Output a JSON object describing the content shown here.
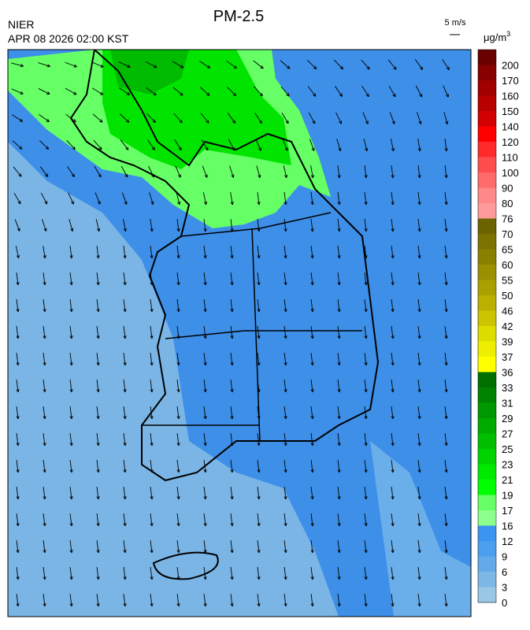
{
  "title": "PM-2.5",
  "agency": "NIER",
  "timestamp": "APR 08 2026 02:00 KST",
  "wind_scale": "5 m/s",
  "unit": {
    "base": "μg/m",
    "sup": "3"
  },
  "legend": [
    {
      "value": 200,
      "color": "#6a0000"
    },
    {
      "value": 170,
      "color": "#880000"
    },
    {
      "value": 160,
      "color": "#a00000"
    },
    {
      "value": 150,
      "color": "#b80000"
    },
    {
      "value": 140,
      "color": "#d20000"
    },
    {
      "value": 120,
      "color": "#ff0000"
    },
    {
      "value": 110,
      "color": "#ff2a2a"
    },
    {
      "value": 100,
      "color": "#ff4d4d"
    },
    {
      "value": 90,
      "color": "#ff6b6b"
    },
    {
      "value": 80,
      "color": "#ff8888"
    },
    {
      "value": 76,
      "color": "#ff9a9a"
    },
    {
      "value": 70,
      "color": "#6b6300"
    },
    {
      "value": 65,
      "color": "#7b7200"
    },
    {
      "value": 60,
      "color": "#8a8000"
    },
    {
      "value": 55,
      "color": "#9a9000"
    },
    {
      "value": 50,
      "color": "#aaa000"
    },
    {
      "value": 46,
      "color": "#bbb000"
    },
    {
      "value": 42,
      "color": "#ccc400"
    },
    {
      "value": 39,
      "color": "#dddd00"
    },
    {
      "value": 37,
      "color": "#eeee00"
    },
    {
      "value": 36,
      "color": "#ffff00"
    },
    {
      "value": 33,
      "color": "#007000"
    },
    {
      "value": 31,
      "color": "#008400"
    },
    {
      "value": 29,
      "color": "#009800"
    },
    {
      "value": 27,
      "color": "#00ab00"
    },
    {
      "value": 25,
      "color": "#00bf00"
    },
    {
      "value": 23,
      "color": "#00d400"
    },
    {
      "value": 21,
      "color": "#00ea00"
    },
    {
      "value": 19,
      "color": "#00ff00"
    },
    {
      "value": 17,
      "color": "#66ff66"
    },
    {
      "value": 16,
      "color": "#8cff8c"
    },
    {
      "value": 12,
      "color": "#3a94f0"
    },
    {
      "value": 9,
      "color": "#4c9eee"
    },
    {
      "value": 6,
      "color": "#63aaea"
    },
    {
      "value": 3,
      "color": "#7db7e6"
    },
    {
      "value": 0,
      "color": "#9ac7e6"
    }
  ]
}
